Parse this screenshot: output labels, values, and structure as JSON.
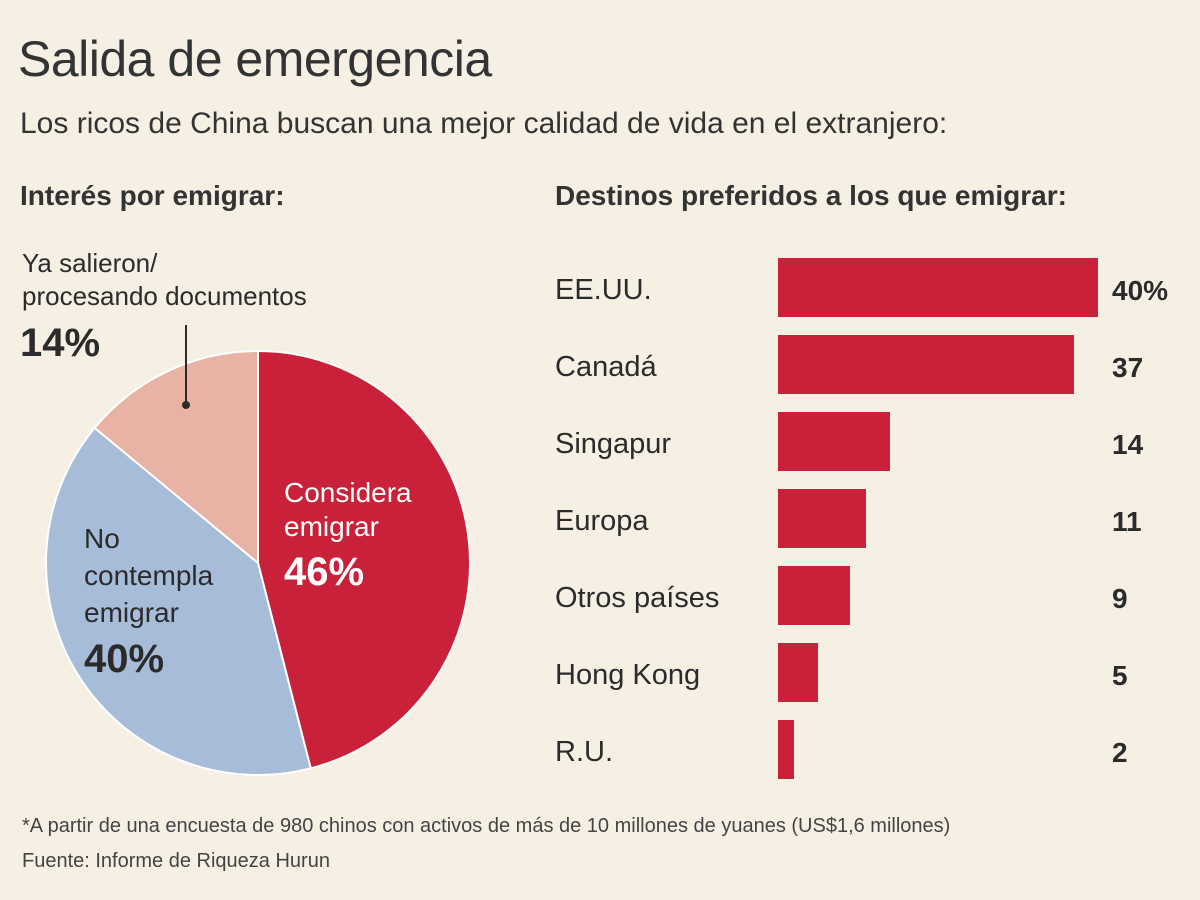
{
  "title": "Salida de emergencia",
  "subtitle": "Los ricos de China buscan una mejor calidad de vida en el extranjero:",
  "footnote": "*A partir de una encuesta de 980 chinos con activos de más de 10 millones de yuanes (US$1,6 millones)",
  "source": "Fuente: Informe de Riqueza Hurun",
  "colors": {
    "red": "#c9213a",
    "blue": "#a7bcd8",
    "pink": "#e8b2a5",
    "background": "#f5f0e3"
  },
  "chart_data": [
    {
      "type": "pie",
      "title": "Interés por emigrar:",
      "slices": [
        {
          "label_lines": [
            "Considera",
            "emigrar"
          ],
          "value": 46,
          "value_label": "46%",
          "color": "#c9213a"
        },
        {
          "label_lines": [
            "No",
            "contempla",
            "emigrar"
          ],
          "value": 40,
          "value_label": "40%",
          "color": "#a7bcd8"
        },
        {
          "label_lines": [
            "Ya salieron/",
            "procesando documentos"
          ],
          "value": 14,
          "value_label": "14%",
          "color": "#e8b2a5"
        }
      ]
    },
    {
      "type": "bar",
      "orientation": "horizontal",
      "title": "Destinos preferidos a los que emigrar:",
      "categories": [
        "EE.UU.",
        "Canadá",
        "Singapur",
        "Europa",
        "Otros países",
        "Hong Kong",
        "R.U."
      ],
      "values": [
        40,
        37,
        14,
        11,
        9,
        5,
        2
      ],
      "value_labels": [
        "40%",
        "37",
        "14",
        "11",
        "9",
        "5",
        "2"
      ],
      "color": "#c9213a"
    }
  ]
}
